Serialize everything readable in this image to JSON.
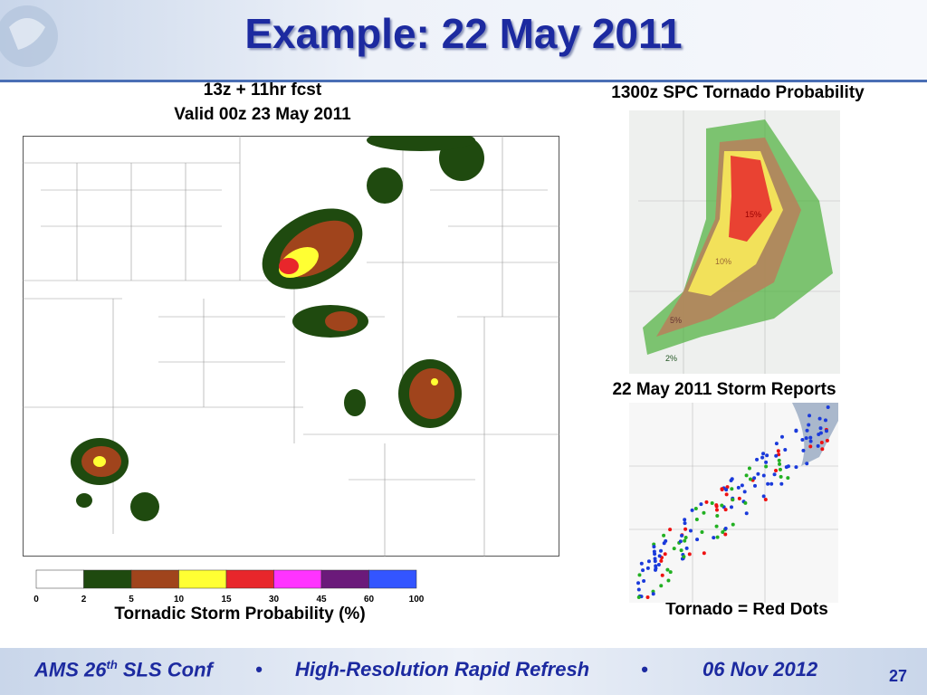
{
  "header": {
    "title": "Example: 22 May 2011"
  },
  "left_panel": {
    "title_lines": [
      "13z + 11hr fcst",
      "Valid 00z 23 May 2011"
    ],
    "colorbar": {
      "ticks": [
        "0",
        "2",
        "5",
        "10",
        "15",
        "30",
        "45",
        "60",
        "100"
      ],
      "colors": [
        "#ffffff",
        "#1f4a0f",
        "#a0441c",
        "#ffff33",
        "#e8262b",
        "#ff33ff",
        "#6b1a7a",
        "#3355ff"
      ]
    },
    "caption": "Tornadic Storm Probability (%)"
  },
  "right_top": {
    "title": "1300z SPC Tornado Probability",
    "labels": [
      "15%",
      "10%",
      "5%",
      "2%"
    ]
  },
  "right_bottom": {
    "title": "22 May 2011 Storm Reports",
    "caption": "Tornado = Red Dots"
  },
  "footer": {
    "conf": "AMS 26",
    "conf_sup": "th",
    "conf_rest": " SLS Conf",
    "separators": [
      "•",
      "•"
    ],
    "project": "High-Resolution Rapid Refresh",
    "date": "06 Nov 2012",
    "page": "27"
  }
}
